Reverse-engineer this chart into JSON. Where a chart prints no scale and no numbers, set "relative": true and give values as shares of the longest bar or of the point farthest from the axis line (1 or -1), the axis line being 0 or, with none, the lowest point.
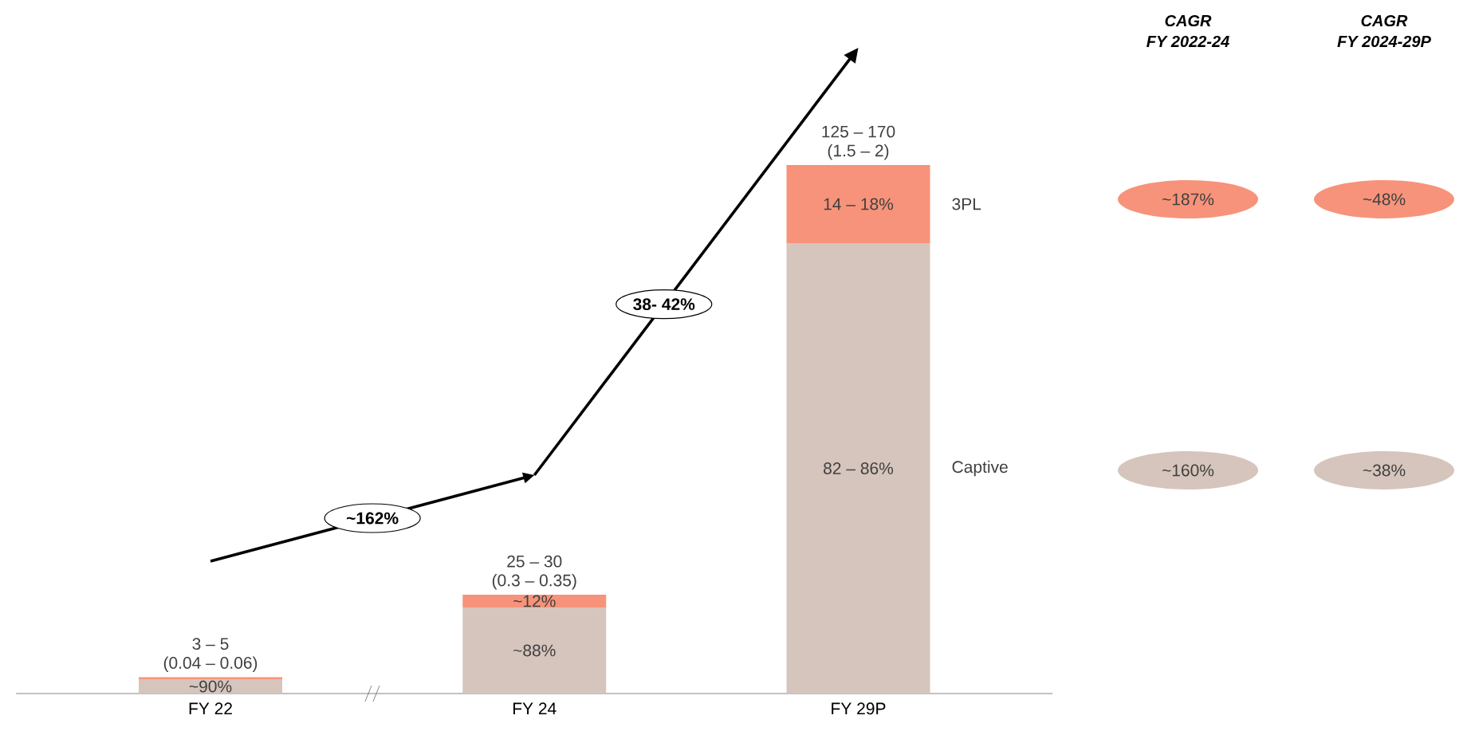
{
  "chart_data": {
    "type": "bar",
    "stacked": true,
    "relative": true,
    "categories": [
      "FY 22",
      "FY 24",
      "FY 29P"
    ],
    "series": [
      {
        "name": "Captive",
        "color": "#d6c5bc",
        "values": [
          0.027,
          0.163,
          0.852
        ]
      },
      {
        "name": "3PL",
        "color": "#f7937a",
        "values": [
          0.004,
          0.024,
          0.148
        ]
      }
    ],
    "totals": [
      "3 – 5",
      "25 – 30",
      "125 – 170"
    ],
    "annotations": [
      "~162%",
      "38- 42%",
      "CAGR",
      "FY 2022-24",
      "CAGR",
      "FY 2024-29P",
      "~187%",
      "~48%",
      "~160%",
      "~38%",
      {
        "text": "(0.04 – 0.06)",
        "x": "FY 22",
        "y": 0.031
      },
      {
        "text": "(0.3 – 0.35)",
        "x": "FY 24",
        "y": 0.187
      },
      {
        "text": "(1.5 – 2)",
        "x": "FY 29P",
        "y": 1.0
      },
      "~90%",
      "~88%",
      "~12%",
      "82 – 86%",
      "14 – 18%"
    ]
  }
}
